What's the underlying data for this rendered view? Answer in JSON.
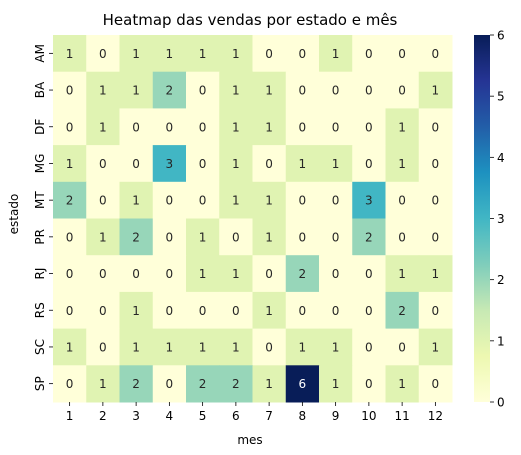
{
  "chart_data": {
    "type": "heatmap",
    "title": "Heatmap das vendas por estado e mês",
    "xlabel": "mes",
    "ylabel": "estado",
    "x_categories": [
      "1",
      "2",
      "3",
      "4",
      "5",
      "6",
      "7",
      "8",
      "9",
      "10",
      "11",
      "12"
    ],
    "y_categories": [
      "AM",
      "BA",
      "DF",
      "MG",
      "MT",
      "PR",
      "RJ",
      "RS",
      "SC",
      "SP"
    ],
    "values": [
      [
        1,
        0,
        1,
        1,
        1,
        1,
        0,
        0,
        1,
        0,
        0,
        0
      ],
      [
        0,
        1,
        1,
        2,
        0,
        1,
        1,
        0,
        0,
        0,
        0,
        1
      ],
      [
        0,
        1,
        0,
        0,
        0,
        1,
        1,
        0,
        0,
        0,
        1,
        0
      ],
      [
        1,
        0,
        0,
        3,
        0,
        1,
        0,
        1,
        1,
        0,
        1,
        0
      ],
      [
        2,
        0,
        1,
        0,
        0,
        1,
        1,
        0,
        0,
        3,
        0,
        0
      ],
      [
        0,
        1,
        2,
        0,
        1,
        0,
        1,
        0,
        0,
        2,
        0,
        0
      ],
      [
        0,
        0,
        0,
        0,
        1,
        1,
        0,
        2,
        0,
        0,
        1,
        1
      ],
      [
        0,
        0,
        1,
        0,
        0,
        0,
        1,
        0,
        0,
        0,
        2,
        0
      ],
      [
        1,
        0,
        1,
        1,
        1,
        1,
        0,
        1,
        1,
        0,
        0,
        1
      ],
      [
        0,
        1,
        2,
        0,
        2,
        2,
        1,
        6,
        1,
        0,
        1,
        0
      ]
    ],
    "colorbar": {
      "min": 0,
      "max": 6,
      "ticks": [
        0,
        1,
        2,
        3,
        4,
        5,
        6
      ]
    },
    "colormap": "YlGnBu",
    "annotations": true,
    "grid": false
  }
}
